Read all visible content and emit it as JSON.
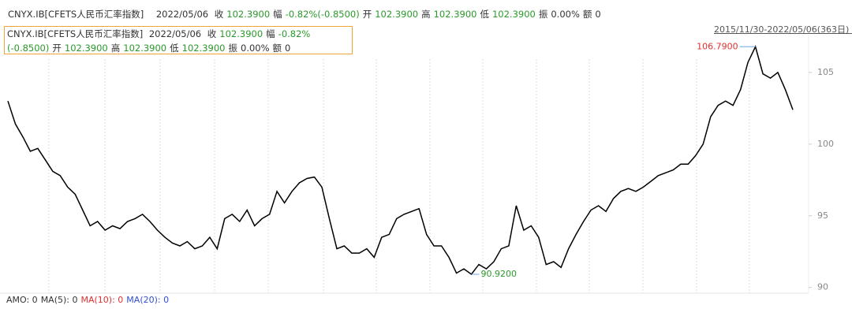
{
  "header": {
    "symbol": "CNYX.IB[CFETS人民币汇率指数]",
    "date": "2022/05/06",
    "fields": [
      {
        "label": "收",
        "value": "102.3900"
      },
      {
        "label": "幅",
        "value": "-0.82%(-0.8500)"
      },
      {
        "label": "开",
        "value": "102.3900"
      },
      {
        "label": "高",
        "value": "102.3900"
      },
      {
        "label": "低",
        "value": "102.3900"
      },
      {
        "label": "振",
        "value": "0.00%"
      },
      {
        "label": "额",
        "value": "0"
      }
    ]
  },
  "range": "2015/11/30-2022/05/06(363日)",
  "footer": [
    {
      "text": "AMO: 0"
    },
    {
      "text": "MA(5): 0"
    },
    {
      "text": "MA(10): 0"
    },
    {
      "text": "MA(20): 0"
    }
  ],
  "chart_data": {
    "type": "line",
    "color": "#000000",
    "ylim": [
      89.6,
      108.4
    ],
    "yticks": [
      90,
      95,
      100,
      105
    ],
    "grid": false,
    "max_label": "106.7900",
    "min_label": "90.9200",
    "values": [
      103.0,
      101.4,
      100.5,
      99.5,
      99.7,
      98.9,
      98.1,
      97.8,
      97.0,
      96.5,
      95.4,
      94.3,
      94.6,
      94.0,
      94.3,
      94.1,
      94.6,
      94.8,
      95.1,
      94.6,
      94.0,
      93.5,
      93.1,
      92.9,
      93.2,
      92.7,
      92.9,
      93.5,
      92.7,
      94.8,
      95.1,
      94.6,
      95.4,
      94.3,
      94.8,
      95.1,
      96.7,
      95.9,
      96.7,
      97.3,
      97.6,
      97.7,
      97.0,
      94.8,
      92.7,
      92.9,
      92.4,
      92.4,
      92.7,
      92.1,
      93.5,
      93.7,
      94.8,
      95.1,
      95.3,
      95.5,
      93.7,
      92.9,
      92.9,
      92.1,
      91.0,
      91.3,
      90.92,
      91.6,
      91.3,
      91.8,
      92.7,
      92.9,
      95.7,
      94.0,
      94.3,
      93.5,
      91.6,
      91.8,
      91.4,
      92.7,
      93.7,
      94.6,
      95.4,
      95.7,
      95.3,
      96.2,
      96.7,
      96.9,
      96.7,
      97.0,
      97.4,
      97.8,
      98.0,
      98.2,
      98.6,
      98.6,
      99.2,
      100.0,
      101.9,
      102.7,
      103.0,
      102.7,
      103.8,
      105.7,
      106.79,
      104.9,
      104.6,
      105.0,
      103.8,
      102.39
    ]
  }
}
